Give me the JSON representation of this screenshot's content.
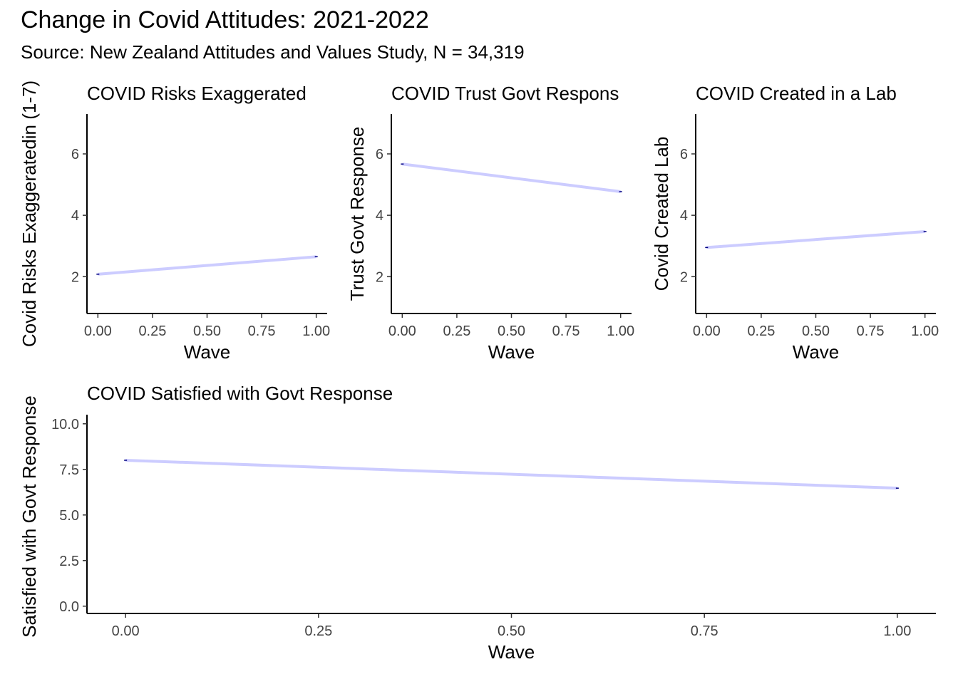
{
  "title": "Change in Covid Attitudes: 2021-2022",
  "subtitle": "Source: New Zealand Attitudes and Values Study, N = 34,319",
  "chart_data": [
    {
      "type": "line",
      "title": "COVID Risks Exaggerated",
      "xlabel": "Wave",
      "ylabel": "Covid Risks Exaggeratedin (1-7)",
      "x": [
        0,
        1
      ],
      "series": [
        {
          "values": [
            2.08,
            2.65
          ]
        }
      ],
      "xticks": [
        "0.00",
        "0.25",
        "0.50",
        "0.75",
        "1.00"
      ],
      "yticks": [
        "2",
        "4",
        "6"
      ],
      "xlim": [
        -0.05,
        1.05
      ],
      "ylim": [
        0.8,
        7.3
      ],
      "grid": false,
      "line_color": "#ccccff"
    },
    {
      "type": "line",
      "title": "COVID Trust Govt Respons",
      "xlabel": "Wave",
      "ylabel": "Trust Govt Response",
      "x": [
        0,
        1
      ],
      "series": [
        {
          "values": [
            5.67,
            4.77
          ]
        }
      ],
      "xticks": [
        "0.00",
        "0.25",
        "0.50",
        "0.75",
        "1.00"
      ],
      "yticks": [
        "2",
        "4",
        "6"
      ],
      "xlim": [
        -0.05,
        1.05
      ],
      "ylim": [
        0.8,
        7.3
      ],
      "grid": false,
      "line_color": "#ccccff"
    },
    {
      "type": "line",
      "title": "COVID Created in a Lab",
      "xlabel": "Wave",
      "ylabel": "Covid Created Lab",
      "x": [
        0,
        1
      ],
      "series": [
        {
          "values": [
            2.95,
            3.47
          ]
        }
      ],
      "xticks": [
        "0.00",
        "0.25",
        "0.50",
        "0.75",
        "1.00"
      ],
      "yticks": [
        "2",
        "4",
        "6"
      ],
      "xlim": [
        -0.05,
        1.05
      ],
      "ylim": [
        0.8,
        7.3
      ],
      "grid": false,
      "line_color": "#ccccff"
    },
    {
      "type": "line",
      "title": "COVID Satisfied with Govt Response",
      "xlabel": "Wave",
      "ylabel": "Satisfied with Govt Response",
      "x": [
        0,
        1
      ],
      "series": [
        {
          "values": [
            8.0,
            6.47
          ]
        }
      ],
      "xticks": [
        "0.00",
        "0.25",
        "0.50",
        "0.75",
        "1.00"
      ],
      "yticks": [
        "0.0",
        "2.5",
        "5.0",
        "7.5",
        "10.0"
      ],
      "xlim": [
        -0.05,
        1.05
      ],
      "ylim": [
        -0.4,
        10.5
      ],
      "grid": false,
      "line_color": "#ccccff"
    }
  ]
}
